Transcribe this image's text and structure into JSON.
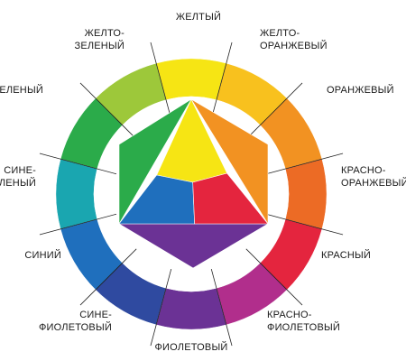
{
  "diagram": {
    "segments": [
      {
        "id": "yellow",
        "color": "#f6e514",
        "lines": [
          "ЖЕЛТЫЙ"
        ]
      },
      {
        "id": "yellow-orange",
        "color": "#f8c11e",
        "lines": [
          "ЖЕЛТО-",
          "ОРАНЖЕВЫЙ"
        ]
      },
      {
        "id": "orange",
        "color": "#f29222",
        "lines": [
          "ОРАНЖЕВЫЙ"
        ]
      },
      {
        "id": "red-orange",
        "color": "#ec6b25",
        "lines": [
          "КРАСНО-",
          "ОРАНЖЕВЫЙ"
        ]
      },
      {
        "id": "red",
        "color": "#e4253e",
        "lines": [
          "КРАСНЫЙ"
        ]
      },
      {
        "id": "red-violet",
        "color": "#b12e8c",
        "lines": [
          "КРАСНО-",
          "ФИОЛЕТОВЫЙ"
        ]
      },
      {
        "id": "violet",
        "color": "#6b3295",
        "lines": [
          "ФИОЛЕТОВЫЙ"
        ]
      },
      {
        "id": "blue-violet",
        "color": "#2f4aa0",
        "lines": [
          "СИНЕ-",
          "ФИОЛЕТОВЫЙ"
        ]
      },
      {
        "id": "blue",
        "color": "#1f6fbd",
        "lines": [
          "СИНИЙ"
        ]
      },
      {
        "id": "blue-green",
        "color": "#1aa6b0",
        "lines": [
          "СИНЕ-",
          "ЗЕЛЕНЫЙ"
        ]
      },
      {
        "id": "green",
        "color": "#2bab4a",
        "lines": [
          "ЗЕЛЕНЫЙ"
        ]
      },
      {
        "id": "yellow-green",
        "color": "#9dc83a",
        "lines": [
          "ЖЕЛТО-",
          "ЗЕЛЕНЫЙ"
        ]
      }
    ],
    "center": {
      "primaries": {
        "yellow": "#f6e514",
        "red": "#e4253e",
        "blue": "#1f6fbd"
      },
      "secondaries": {
        "orange": "#f29222",
        "violet": "#6b3295",
        "green": "#2bab4a"
      }
    }
  }
}
